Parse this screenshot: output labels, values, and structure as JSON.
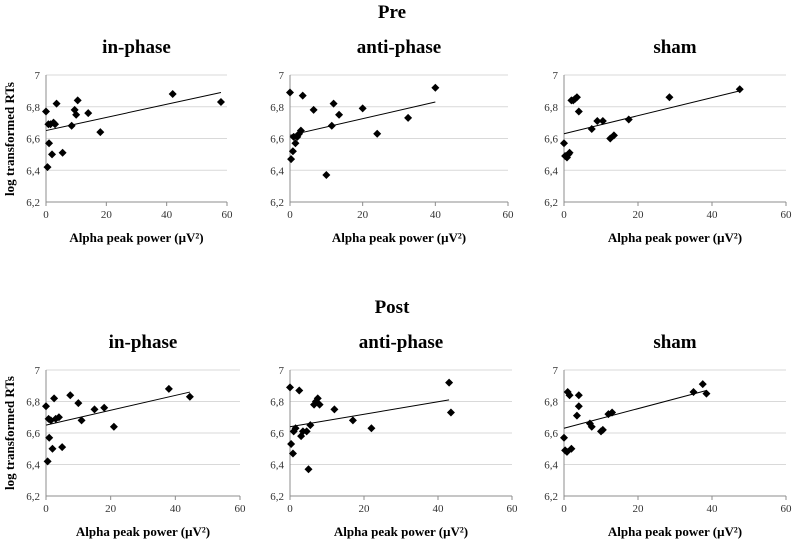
{
  "figure": {
    "sections": [
      {
        "id": "pre",
        "title": "Pre"
      },
      {
        "id": "post",
        "title": "Post"
      }
    ],
    "ylabel": "log transformed RTs",
    "xlabel": "Alpha peak power (μV²)"
  },
  "chart_data": [
    {
      "type": "scatter",
      "section": "Pre",
      "title": "in-phase",
      "xlabel": "Alpha peak power (μV²)",
      "ylabel": "log transformed RTs",
      "xlim": [
        0,
        60
      ],
      "ylim": [
        6.2,
        7.0
      ],
      "xticks": [
        0,
        20,
        40,
        60
      ],
      "yticks": [
        "6,2",
        "6,4",
        "6,6",
        "6,8",
        "7"
      ],
      "points": [
        [
          0,
          6.77
        ],
        [
          0.5,
          6.42
        ],
        [
          0.8,
          6.69
        ],
        [
          1,
          6.57
        ],
        [
          1.5,
          6.69
        ],
        [
          2,
          6.5
        ],
        [
          2.5,
          6.7
        ],
        [
          3,
          6.69
        ],
        [
          3.5,
          6.82
        ],
        [
          5.5,
          6.51
        ],
        [
          8.5,
          6.68
        ],
        [
          9.5,
          6.78
        ],
        [
          10,
          6.75
        ],
        [
          10.5,
          6.84
        ],
        [
          14,
          6.76
        ],
        [
          18,
          6.64
        ],
        [
          42,
          6.88
        ],
        [
          58,
          6.83
        ]
      ],
      "trendline": [
        [
          0,
          6.65
        ],
        [
          58,
          6.89
        ]
      ]
    },
    {
      "type": "scatter",
      "section": "Pre",
      "title": "anti-phase",
      "xlabel": "Alpha peak power (μV²)",
      "ylabel": "",
      "xlim": [
        0,
        60
      ],
      "ylim": [
        6.2,
        7.0
      ],
      "xticks": [
        0,
        20,
        40,
        60
      ],
      "yticks": [
        "6,2",
        "6,4",
        "6,6",
        "6,8",
        "7"
      ],
      "points": [
        [
          0,
          6.89
        ],
        [
          0.3,
          6.47
        ],
        [
          0.8,
          6.52
        ],
        [
          1,
          6.61
        ],
        [
          1.5,
          6.57
        ],
        [
          2,
          6.61
        ],
        [
          2.5,
          6.63
        ],
        [
          3,
          6.65
        ],
        [
          3.5,
          6.87
        ],
        [
          6.5,
          6.78
        ],
        [
          10,
          6.37
        ],
        [
          11.5,
          6.68
        ],
        [
          12,
          6.82
        ],
        [
          13.5,
          6.75
        ],
        [
          20,
          6.79
        ],
        [
          24,
          6.63
        ],
        [
          32.5,
          6.73
        ],
        [
          40,
          6.92
        ]
      ],
      "trendline": [
        [
          0,
          6.62
        ],
        [
          40,
          6.83
        ]
      ]
    },
    {
      "type": "scatter",
      "section": "Pre",
      "title": "sham",
      "xlabel": "Alpha peak power (μV²)",
      "ylabel": "",
      "xlim": [
        0,
        60
      ],
      "ylim": [
        6.2,
        7.0
      ],
      "xticks": [
        0,
        20,
        40,
        60
      ],
      "yticks": [
        "6,2",
        "6,4",
        "6,6",
        "6,8",
        "7"
      ],
      "points": [
        [
          0,
          6.57
        ],
        [
          0.3,
          6.49
        ],
        [
          0.8,
          6.48
        ],
        [
          1.2,
          6.5
        ],
        [
          1.5,
          6.51
        ],
        [
          2,
          6.84
        ],
        [
          2.5,
          6.84
        ],
        [
          3,
          6.85
        ],
        [
          3.5,
          6.86
        ],
        [
          4,
          6.77
        ],
        [
          7.5,
          6.66
        ],
        [
          9,
          6.71
        ],
        [
          10.5,
          6.71
        ],
        [
          12.5,
          6.6
        ],
        [
          13.5,
          6.62
        ],
        [
          17.5,
          6.72
        ],
        [
          28.5,
          6.86
        ],
        [
          47.5,
          6.91
        ]
      ],
      "trendline": [
        [
          0,
          6.63
        ],
        [
          47.5,
          6.9
        ]
      ]
    },
    {
      "type": "scatter",
      "section": "Post",
      "title": "in-phase",
      "xlabel": "Alpha peak power (μV²)",
      "ylabel": "log transformed RTs",
      "xlim": [
        0,
        60
      ],
      "ylim": [
        6.2,
        7.0
      ],
      "xticks": [
        0,
        20,
        40,
        60
      ],
      "yticks": [
        "6,2",
        "6,4",
        "6,6",
        "6,8",
        "7"
      ],
      "points": [
        [
          0,
          6.77
        ],
        [
          0.5,
          6.42
        ],
        [
          0.8,
          6.69
        ],
        [
          1,
          6.57
        ],
        [
          1.5,
          6.68
        ],
        [
          2,
          6.5
        ],
        [
          2.5,
          6.82
        ],
        [
          3,
          6.69
        ],
        [
          4,
          6.7
        ],
        [
          5,
          6.51
        ],
        [
          7.5,
          6.84
        ],
        [
          10,
          6.79
        ],
        [
          11,
          6.68
        ],
        [
          15,
          6.75
        ],
        [
          18,
          6.76
        ],
        [
          21,
          6.64
        ],
        [
          38,
          6.88
        ],
        [
          44.5,
          6.83
        ]
      ],
      "trendline": [
        [
          0,
          6.65
        ],
        [
          44.5,
          6.86
        ]
      ]
    },
    {
      "type": "scatter",
      "section": "Post",
      "title": "anti-phase",
      "xlabel": "Alpha peak power (μV²)",
      "ylabel": "",
      "xlim": [
        0,
        60
      ],
      "ylim": [
        6.2,
        7.0
      ],
      "xticks": [
        0,
        20,
        40,
        60
      ],
      "yticks": [
        "6,2",
        "6,4",
        "6,6",
        "6,8",
        "7"
      ],
      "points": [
        [
          0,
          6.89
        ],
        [
          0.3,
          6.53
        ],
        [
          0.8,
          6.47
        ],
        [
          1,
          6.61
        ],
        [
          1.5,
          6.63
        ],
        [
          2.5,
          6.87
        ],
        [
          3,
          6.58
        ],
        [
          3.5,
          6.61
        ],
        [
          4.5,
          6.61
        ],
        [
          5,
          6.37
        ],
        [
          5.5,
          6.65
        ],
        [
          6.5,
          6.78
        ],
        [
          7,
          6.8
        ],
        [
          7.5,
          6.82
        ],
        [
          8,
          6.78
        ],
        [
          12,
          6.75
        ],
        [
          17,
          6.68
        ],
        [
          22,
          6.63
        ],
        [
          43,
          6.92
        ],
        [
          43.5,
          6.73
        ]
      ],
      "trendline": [
        [
          0,
          6.64
        ],
        [
          43,
          6.81
        ]
      ]
    },
    {
      "type": "scatter",
      "section": "Post",
      "title": "sham",
      "xlabel": "Alpha peak power (μV²)",
      "ylabel": "",
      "xlim": [
        0,
        60
      ],
      "ylim": [
        6.2,
        7.0
      ],
      "xticks": [
        0,
        20,
        40,
        60
      ],
      "yticks": [
        "6,2",
        "6,4",
        "6,6",
        "6,8",
        "7"
      ],
      "points": [
        [
          0,
          6.57
        ],
        [
          0.3,
          6.49
        ],
        [
          0.8,
          6.48
        ],
        [
          1,
          6.86
        ],
        [
          1.5,
          6.84
        ],
        [
          2,
          6.5
        ],
        [
          3.5,
          6.71
        ],
        [
          4,
          6.84
        ],
        [
          4,
          6.77
        ],
        [
          7,
          6.66
        ],
        [
          7.5,
          6.64
        ],
        [
          10,
          6.61
        ],
        [
          10.5,
          6.62
        ],
        [
          12,
          6.72
        ],
        [
          13,
          6.73
        ],
        [
          35,
          6.86
        ],
        [
          37.5,
          6.91
        ],
        [
          38.5,
          6.85
        ]
      ],
      "trendline": [
        [
          0,
          6.63
        ],
        [
          38.5,
          6.87
        ]
      ]
    }
  ]
}
